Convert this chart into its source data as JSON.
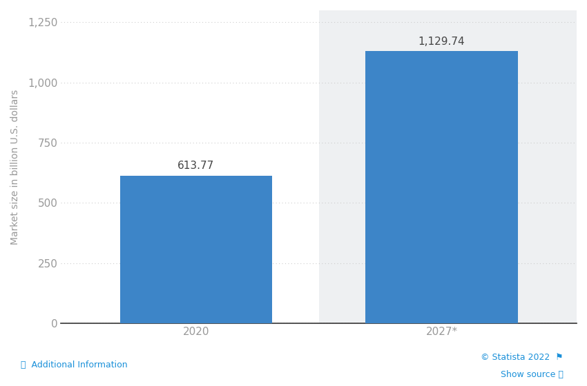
{
  "categories": [
    "2020",
    "2027*"
  ],
  "values": [
    613.77,
    1129.74
  ],
  "bar_color": "#3d85c8",
  "bar_labels": [
    "613.77",
    "1,129.74"
  ],
  "ylabel": "Market size in billion U.S. dollars",
  "ylim": [
    0,
    1300
  ],
  "yticks": [
    0,
    250,
    500,
    750,
    1000,
    1250
  ],
  "ytick_labels": [
    "0",
    "250",
    "500",
    "750",
    "1,000",
    "1,250"
  ],
  "background_color": "#ffffff",
  "plot_bg_color": "#ffffff",
  "bar2_bg_color": "#eef0f2",
  "grid_color": "#cccccc",
  "label_fontsize": 11,
  "tick_fontsize": 11,
  "ylabel_fontsize": 10,
  "footer_left_text": "ⓘ  Additional Information",
  "footer_left_color": "#1a90d9",
  "footer_right_text1": "© Statista 2022  ⚑",
  "footer_right_text2": "Show source ⓘ",
  "footer_right_color": "#1a90d9"
}
